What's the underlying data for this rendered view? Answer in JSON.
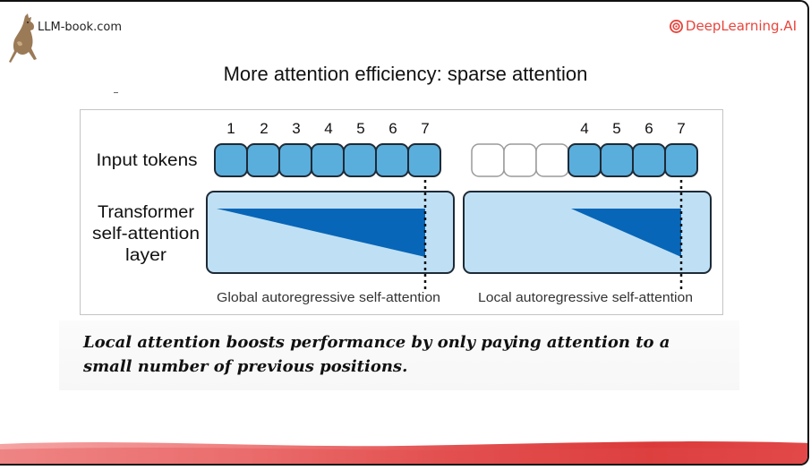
{
  "header": {
    "brand_left": "LLM-book.com",
    "brand_right": "DeepLearning.AI",
    "logo_icon": "kangaroo-logo-icon",
    "dl_icon": "deeplearning-ai-logo-icon"
  },
  "slide": {
    "title": "More attention efficiency: sparse attention",
    "caption": "Local attention boosts performance by only paying attention to a small number of previous positions."
  },
  "diagram": {
    "row_labels": {
      "input_tokens": "Input tokens",
      "transformer_line1": "Transformer",
      "transformer_line2": "self-attention",
      "transformer_line3": "layer"
    },
    "global": {
      "token_numbers": [
        "1",
        "2",
        "3",
        "4",
        "5",
        "6",
        "7"
      ],
      "caption": "Global autoregressive self-attention"
    },
    "local": {
      "token_numbers": [
        "4",
        "5",
        "6",
        "7"
      ],
      "caption": "Local autoregressive self-attention",
      "empty_tokens": 3
    },
    "colors": {
      "token_fill": "#5aaedc",
      "token_stroke": "#1e2a36",
      "layer_fill": "#bfe0f4",
      "attention_fill": "#0866b8",
      "accent_red": "#e8453c"
    }
  }
}
